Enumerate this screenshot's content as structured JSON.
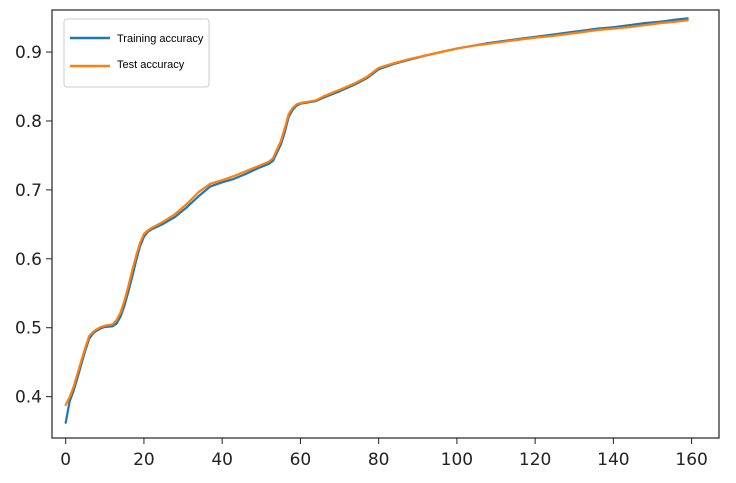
{
  "chart_data": {
    "type": "line",
    "title": "",
    "xlabel": "",
    "ylabel": "",
    "xlim": [
      -3.5,
      167
    ],
    "ylim": [
      0.34,
      0.961
    ],
    "xticks": [
      0,
      20,
      40,
      60,
      80,
      100,
      120,
      140,
      160
    ],
    "yticks": [
      0.4,
      0.5,
      0.6,
      0.7,
      0.8,
      0.9
    ],
    "grid": false,
    "legend": "top-left",
    "series": [
      {
        "name": "Training accuracy",
        "color": "#1f77b4",
        "x": [
          0,
          1,
          2,
          3,
          4,
          5,
          6,
          7,
          8,
          9,
          10,
          12,
          13,
          14,
          15,
          16,
          17,
          18,
          19,
          20,
          21,
          22,
          25,
          28,
          31,
          34,
          37,
          40,
          43,
          46,
          49,
          52,
          53,
          55,
          56,
          57,
          58,
          59,
          60,
          62,
          64,
          66,
          70,
          74,
          77,
          80,
          84,
          88,
          92,
          96,
          100,
          104,
          108,
          112,
          116,
          120,
          124,
          128,
          132,
          136,
          140,
          144,
          148,
          152,
          156,
          159
        ],
        "y": [
          0.362,
          0.393,
          0.408,
          0.427,
          0.447,
          0.467,
          0.484,
          0.492,
          0.496,
          0.499,
          0.501,
          0.502,
          0.506,
          0.516,
          0.532,
          0.552,
          0.574,
          0.597,
          0.618,
          0.632,
          0.639,
          0.643,
          0.651,
          0.661,
          0.675,
          0.691,
          0.705,
          0.711,
          0.716,
          0.723,
          0.731,
          0.738,
          0.742,
          0.766,
          0.784,
          0.806,
          0.816,
          0.822,
          0.825,
          0.827,
          0.829,
          0.834,
          0.843,
          0.853,
          0.862,
          0.875,
          0.883,
          0.889,
          0.895,
          0.9,
          0.905,
          0.909,
          0.913,
          0.916,
          0.919,
          0.922,
          0.925,
          0.928,
          0.931,
          0.934,
          0.936,
          0.939,
          0.942,
          0.944,
          0.947,
          0.949
        ]
      },
      {
        "name": "Test accuracy",
        "color": "#ff7f0e",
        "x": [
          0,
          1,
          2,
          3,
          4,
          5,
          6,
          7,
          8,
          9,
          10,
          12,
          13,
          14,
          15,
          16,
          17,
          18,
          19,
          20,
          21,
          22,
          25,
          28,
          31,
          34,
          37,
          40,
          43,
          46,
          49,
          52,
          53,
          55,
          56,
          57,
          58,
          59,
          60,
          62,
          64,
          66,
          70,
          74,
          77,
          80,
          84,
          88,
          92,
          96,
          100,
          104,
          108,
          112,
          116,
          120,
          124,
          128,
          132,
          136,
          140,
          144,
          148,
          152,
          156,
          159
        ],
        "y": [
          0.388,
          0.399,
          0.414,
          0.433,
          0.452,
          0.471,
          0.488,
          0.494,
          0.498,
          0.501,
          0.503,
          0.505,
          0.511,
          0.522,
          0.539,
          0.56,
          0.583,
          0.604,
          0.623,
          0.636,
          0.641,
          0.645,
          0.654,
          0.665,
          0.68,
          0.697,
          0.709,
          0.714,
          0.72,
          0.727,
          0.734,
          0.741,
          0.746,
          0.771,
          0.79,
          0.81,
          0.819,
          0.824,
          0.826,
          0.828,
          0.83,
          0.836,
          0.845,
          0.855,
          0.864,
          0.877,
          0.884,
          0.89,
          0.895,
          0.9,
          0.905,
          0.909,
          0.912,
          0.915,
          0.918,
          0.921,
          0.923,
          0.926,
          0.929,
          0.932,
          0.934,
          0.936,
          0.939,
          0.942,
          0.944,
          0.946
        ]
      }
    ]
  }
}
